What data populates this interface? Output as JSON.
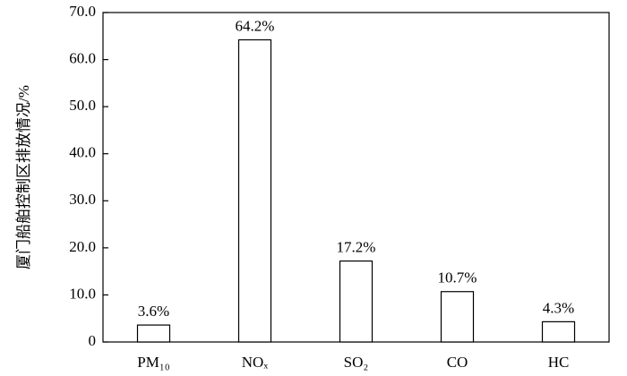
{
  "chart_data": {
    "type": "bar",
    "y_label": "厦门船舶控制区排放情况/%",
    "categories": [
      "PM₁₀",
      "NOₓ",
      "SO₂",
      "CO",
      "HC"
    ],
    "values": [
      3.6,
      64.2,
      17.2,
      10.7,
      4.3
    ],
    "value_labels": [
      "3.6%",
      "64.2%",
      "17.2%",
      "10.7%",
      "4.3%"
    ],
    "color": "#ffffff",
    "ylim": [
      0,
      70
    ],
    "yticks": [
      0,
      {
        "value": 10,
        "label": "10.0"
      },
      {
        "value": 20,
        "label": "20.0"
      },
      {
        "value": 30,
        "label": "30.0"
      },
      {
        "value": 40,
        "label": "40.0"
      },
      {
        "value": 50,
        "label": "50.0"
      },
      {
        "value": 60,
        "label": "60.0"
      },
      {
        "value": 70,
        "label": "70.0"
      }
    ],
    "grid": false
  }
}
